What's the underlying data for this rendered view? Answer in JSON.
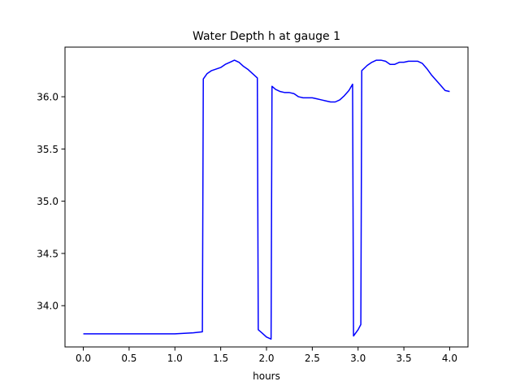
{
  "chart_data": {
    "type": "line",
    "title": "Water Depth h at gauge 1",
    "xlabel": "hours",
    "ylabel": "",
    "xlim": [
      -0.2,
      4.2
    ],
    "ylim": [
      33.605,
      36.475
    ],
    "xticks": [
      "0.0",
      "0.5",
      "1.0",
      "1.5",
      "2.0",
      "2.5",
      "3.0",
      "3.5",
      "4.0"
    ],
    "yticks": [
      "34.0",
      "34.5",
      "35.0",
      "35.5",
      "36.0"
    ],
    "grid": false,
    "line_color": "#0000ff",
    "series": [
      {
        "x": [
          0.0,
          0.5,
          1.0,
          1.2,
          1.3,
          1.31,
          1.35,
          1.4,
          1.5,
          1.55,
          1.6,
          1.65,
          1.7,
          1.75,
          1.8,
          1.85,
          1.9,
          1.91,
          1.95,
          2.0,
          2.05,
          2.06,
          2.1,
          2.15,
          2.2,
          2.25,
          2.3,
          2.35,
          2.4,
          2.45,
          2.5,
          2.55,
          2.6,
          2.65,
          2.7,
          2.75,
          2.8,
          2.85,
          2.9,
          2.94,
          2.95,
          3.0,
          3.03,
          3.04,
          3.1,
          3.15,
          3.2,
          3.25,
          3.3,
          3.35,
          3.4,
          3.45,
          3.5,
          3.55,
          3.6,
          3.65,
          3.7,
          3.75,
          3.8,
          3.85,
          3.9,
          3.95,
          4.0
        ],
        "y": [
          33.73,
          33.73,
          33.73,
          33.74,
          33.75,
          36.17,
          36.22,
          36.25,
          36.28,
          36.31,
          36.33,
          36.35,
          36.33,
          36.29,
          36.26,
          36.22,
          36.18,
          33.77,
          33.74,
          33.7,
          33.68,
          36.1,
          36.07,
          36.05,
          36.04,
          36.04,
          36.03,
          36.0,
          35.99,
          35.99,
          35.99,
          35.98,
          35.97,
          35.96,
          35.95,
          35.95,
          35.97,
          36.01,
          36.06,
          36.12,
          33.71,
          33.77,
          33.82,
          36.25,
          36.3,
          36.33,
          36.35,
          36.35,
          36.34,
          36.31,
          36.31,
          36.33,
          36.33,
          36.34,
          36.34,
          36.34,
          36.32,
          36.27,
          36.21,
          36.16,
          36.11,
          36.06,
          36.05
        ]
      }
    ]
  }
}
